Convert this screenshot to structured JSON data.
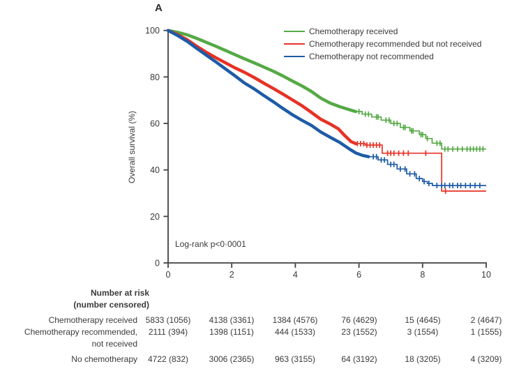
{
  "panel_label": "A",
  "axes": {
    "y_title": "Overall survival (%)",
    "y_ticks": [
      0,
      20,
      40,
      60,
      80,
      100
    ],
    "x_ticks": [
      0,
      2,
      4,
      6,
      8,
      10
    ]
  },
  "annotation": {
    "logrank": "Log-rank p<0·0001"
  },
  "colors": {
    "axis": "#3f3f3f",
    "text": "#3b3a39",
    "green": "#55a946",
    "red": "#e73125",
    "blue": "#1e5ba6"
  },
  "chart_data": {
    "type": "line",
    "subtype": "kaplan-meier-survival",
    "title": "A",
    "xlabel": "",
    "ylabel": "Overall survival (%)",
    "xlim": [
      0,
      10
    ],
    "ylim": [
      0,
      100
    ],
    "grid": false,
    "legend_position": "top-right",
    "annotation": "Log-rank p<0·0001",
    "series": [
      {
        "name": "Chemotherapy received",
        "color": "#55a946",
        "smooth_points": [
          [
            0,
            100
          ],
          [
            0.3,
            99.2
          ],
          [
            0.6,
            98.1
          ],
          [
            0.9,
            96.6
          ],
          [
            1.2,
            94.9
          ],
          [
            1.5,
            93.2
          ],
          [
            1.8,
            91.4
          ],
          [
            2.1,
            89.6
          ],
          [
            2.4,
            87.8
          ],
          [
            2.7,
            86.1
          ],
          [
            3.0,
            84.3
          ],
          [
            3.3,
            82.5
          ],
          [
            3.6,
            80.5
          ],
          [
            3.9,
            78.3
          ],
          [
            4.2,
            76.2
          ],
          [
            4.5,
            73.8
          ],
          [
            4.8,
            70.9
          ],
          [
            5.1,
            68.7
          ],
          [
            5.4,
            67.2
          ],
          [
            5.7,
            65.9
          ],
          [
            5.9,
            65.1
          ]
        ],
        "tail_steps": [
          [
            6.1,
            64.0
          ],
          [
            6.4,
            62.8
          ],
          [
            6.7,
            61.4
          ],
          [
            7.0,
            60.0
          ],
          [
            7.3,
            58.3
          ],
          [
            7.6,
            56.8
          ],
          [
            7.9,
            55.2
          ],
          [
            8.1,
            53.5
          ],
          [
            8.3,
            51.5
          ],
          [
            8.6,
            49.0
          ]
        ],
        "censor_marks_x": [
          6.0,
          6.2,
          6.3,
          6.55,
          6.6,
          6.85,
          6.95,
          7.1,
          7.2,
          7.4,
          7.45,
          7.65,
          7.7,
          7.95,
          8.0,
          8.15,
          8.45,
          8.55,
          8.7,
          8.8,
          8.95,
          9.1,
          9.25,
          9.4,
          9.5,
          9.6,
          9.7,
          9.8,
          9.9
        ]
      },
      {
        "name": "Chemotherapy recommended but not received",
        "color": "#e73125",
        "smooth_points": [
          [
            0,
            100
          ],
          [
            0.3,
            98.2
          ],
          [
            0.6,
            96.0
          ],
          [
            0.9,
            93.2
          ],
          [
            1.2,
            90.6
          ],
          [
            1.5,
            88.3
          ],
          [
            1.8,
            86.1
          ],
          [
            2.1,
            83.9
          ],
          [
            2.4,
            82.0
          ],
          [
            2.7,
            79.8
          ],
          [
            3.0,
            77.4
          ],
          [
            3.3,
            75.1
          ],
          [
            3.6,
            72.7
          ],
          [
            3.9,
            70.2
          ],
          [
            4.2,
            67.7
          ],
          [
            4.5,
            64.8
          ],
          [
            4.8,
            61.8
          ],
          [
            5.1,
            59.7
          ],
          [
            5.35,
            57.7
          ],
          [
            5.55,
            54.8
          ],
          [
            5.75,
            52.2
          ],
          [
            5.9,
            51.3
          ]
        ],
        "tail_steps": [
          [
            6.2,
            50.7
          ],
          [
            6.73,
            47.2
          ],
          [
            8.6,
            30.9
          ]
        ],
        "censor_marks_x": [
          5.95,
          6.05,
          6.15,
          6.25,
          6.35,
          6.45,
          6.55,
          6.65,
          6.9,
          7.0,
          7.1,
          7.25,
          7.4,
          7.55,
          8.1,
          8.72
        ]
      },
      {
        "name": "Chemotherapy not recommended",
        "color": "#1e5ba6",
        "smooth_points": [
          [
            0,
            100
          ],
          [
            0.3,
            97.8
          ],
          [
            0.6,
            95.3
          ],
          [
            0.9,
            92.3
          ],
          [
            1.2,
            89.4
          ],
          [
            1.5,
            86.5
          ],
          [
            1.8,
            83.5
          ],
          [
            2.1,
            80.5
          ],
          [
            2.4,
            77.4
          ],
          [
            2.7,
            74.9
          ],
          [
            3.0,
            72.1
          ],
          [
            3.3,
            69.4
          ],
          [
            3.6,
            66.5
          ],
          [
            3.9,
            63.8
          ],
          [
            4.2,
            61.4
          ],
          [
            4.5,
            59.2
          ],
          [
            4.8,
            56.3
          ],
          [
            5.1,
            54.0
          ],
          [
            5.4,
            51.8
          ],
          [
            5.7,
            49.0
          ],
          [
            5.9,
            47.3
          ],
          [
            6.1,
            46.3
          ],
          [
            6.3,
            45.7
          ]
        ],
        "tail_steps": [
          [
            6.6,
            44.3
          ],
          [
            6.9,
            42.4
          ],
          [
            7.2,
            40.4
          ],
          [
            7.5,
            38.3
          ],
          [
            7.8,
            36.3
          ],
          [
            8.0,
            35.0
          ],
          [
            8.15,
            34.2
          ],
          [
            8.31,
            33.3
          ]
        ],
        "censor_marks_x": [
          6.45,
          6.55,
          6.7,
          6.8,
          7.0,
          7.1,
          7.3,
          7.45,
          7.6,
          7.75,
          7.9,
          8.05,
          8.2,
          8.45,
          8.6,
          8.7,
          8.85,
          8.95,
          9.1,
          9.2,
          9.35,
          9.5,
          9.65,
          9.8
        ]
      }
    ]
  },
  "risk_table": {
    "title_line1": "Number at risk",
    "title_line2": "(number censored)",
    "rows": [
      {
        "label": "Chemotherapy received",
        "values": [
          "5833 (1056)",
          "4138 (3361)",
          "1384 (4576)",
          "76 (4629)",
          "15 (4645)",
          "2 (4647)"
        ]
      },
      {
        "label": "Chemotherapy recommended,",
        "label2": "not received",
        "values": [
          "2111 (394)",
          "1398 (1151)",
          "444 (1533)",
          "23 (1552)",
          "3 (1554)",
          "1 (1555)"
        ]
      },
      {
        "label": "No chemotherapy",
        "values": [
          "4722 (832)",
          "3006 (2365)",
          "963 (3155)",
          "64 (3192)",
          "18 (3205)",
          "4 (3209)"
        ]
      }
    ]
  }
}
